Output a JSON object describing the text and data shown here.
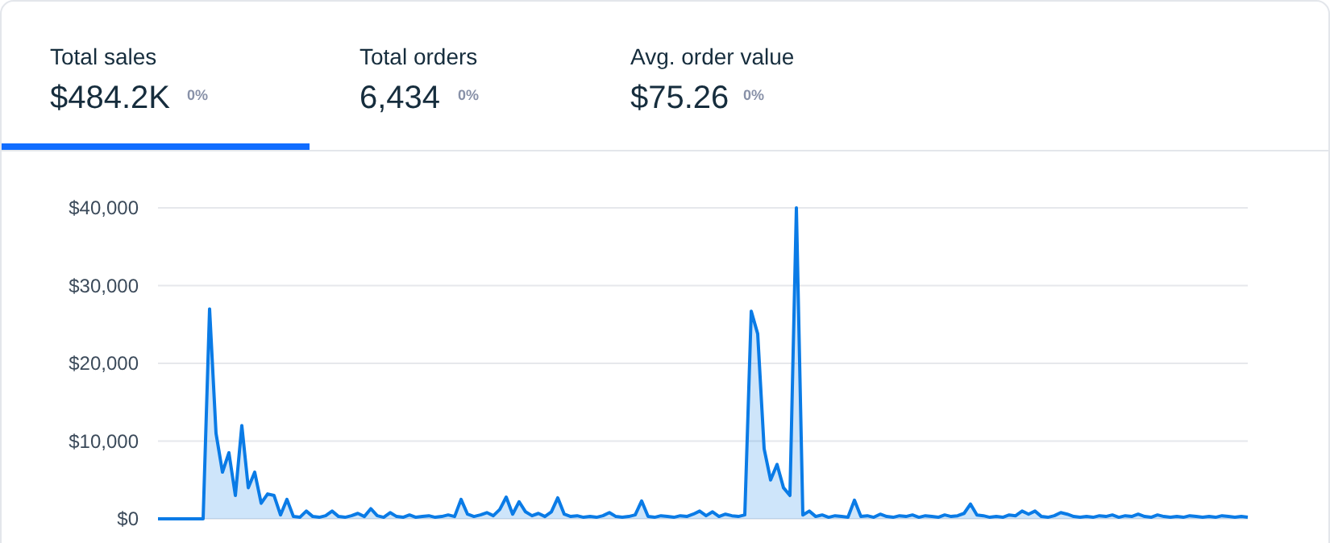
{
  "chart_data": [
    {
      "type": "other",
      "annotations": [
        "Total sales",
        "$484.2K",
        "0%",
        "Total orders",
        "6,434",
        "0%",
        "Avg. order value",
        "$75.26",
        "0%"
      ]
    },
    {
      "type": "area",
      "color": "#0a7be6",
      "grid": "y",
      "ylim": [
        0,
        40000
      ],
      "yticks": [
        {
          "value": 0,
          "label": "$0"
        },
        {
          "value": 10000,
          "label": "$10,000"
        },
        {
          "value": 20000,
          "label": "$20,000"
        },
        {
          "value": 30000,
          "label": "$30,000"
        },
        {
          "value": 40000,
          "label": "$40,000"
        }
      ],
      "categories": [
        null,
        null,
        null,
        null,
        null,
        null,
        null,
        null,
        null,
        null,
        null,
        null,
        null,
        null,
        null,
        null,
        null,
        null,
        null,
        null,
        null,
        null,
        null,
        null,
        null,
        null,
        null,
        null,
        null,
        null,
        null,
        null,
        null,
        null,
        null,
        null,
        null,
        null,
        null,
        null,
        null,
        null,
        null,
        null,
        null,
        null,
        null,
        null,
        null,
        null,
        null,
        null,
        null,
        null,
        null,
        null,
        null,
        null,
        null,
        null,
        null,
        null,
        null,
        null,
        null,
        null,
        null,
        null,
        null,
        null,
        null,
        null,
        null,
        null,
        null,
        null,
        null,
        null,
        null,
        null,
        null,
        null,
        null,
        null,
        null,
        null,
        null,
        null,
        null,
        null,
        null,
        null,
        null,
        null,
        null,
        null,
        null,
        null,
        null,
        null,
        null,
        null,
        null,
        null,
        null,
        null,
        null,
        null,
        null,
        null,
        null,
        null,
        null,
        null,
        null,
        null,
        null,
        null,
        null,
        null,
        null,
        null,
        null,
        null,
        null,
        null,
        null,
        null,
        null,
        null,
        null,
        null,
        null,
        null,
        null,
        null,
        null,
        null,
        null,
        null,
        null,
        null,
        null,
        null,
        null,
        null,
        null,
        null,
        null,
        null,
        null,
        null,
        null,
        null,
        null,
        null,
        null,
        null,
        null,
        null,
        null,
        null,
        null,
        null,
        null,
        null,
        null,
        null,
        null,
        null
      ],
      "values": [
        0,
        0,
        0,
        0,
        0,
        0,
        0,
        0,
        27000,
        11000,
        6000,
        8500,
        3000,
        12000,
        4000,
        6000,
        2000,
        3200,
        3000,
        500,
        2500,
        300,
        200,
        1000,
        300,
        200,
        400,
        1000,
        300,
        200,
        400,
        700,
        300,
        1300,
        400,
        200,
        800,
        300,
        200,
        500,
        200,
        300,
        400,
        200,
        300,
        500,
        300,
        2500,
        600,
        300,
        500,
        800,
        400,
        1200,
        2800,
        600,
        2200,
        900,
        400,
        700,
        300,
        900,
        2700,
        600,
        300,
        400,
        200,
        300,
        200,
        400,
        800,
        300,
        200,
        300,
        500,
        2300,
        300,
        200,
        400,
        300,
        200,
        400,
        300,
        600,
        1000,
        400,
        900,
        300,
        600,
        400,
        300,
        500,
        26700,
        23800,
        9000,
        5000,
        7000,
        4000,
        3000,
        40000,
        500,
        1000,
        300,
        500,
        200,
        400,
        300,
        200,
        2400,
        300,
        400,
        200,
        600,
        300,
        200,
        400,
        300,
        500,
        200,
        400,
        300,
        200,
        500,
        300,
        400,
        700,
        1900,
        500,
        400,
        200,
        300,
        200,
        500,
        400,
        1000,
        600,
        1000,
        300,
        200,
        400,
        800,
        600,
        300,
        200,
        300,
        200,
        400,
        300,
        500,
        200,
        400,
        300,
        600,
        300,
        200,
        500,
        300,
        200,
        300,
        200,
        400,
        300,
        200,
        300,
        200,
        400,
        300,
        200,
        300,
        200
      ]
    }
  ]
}
